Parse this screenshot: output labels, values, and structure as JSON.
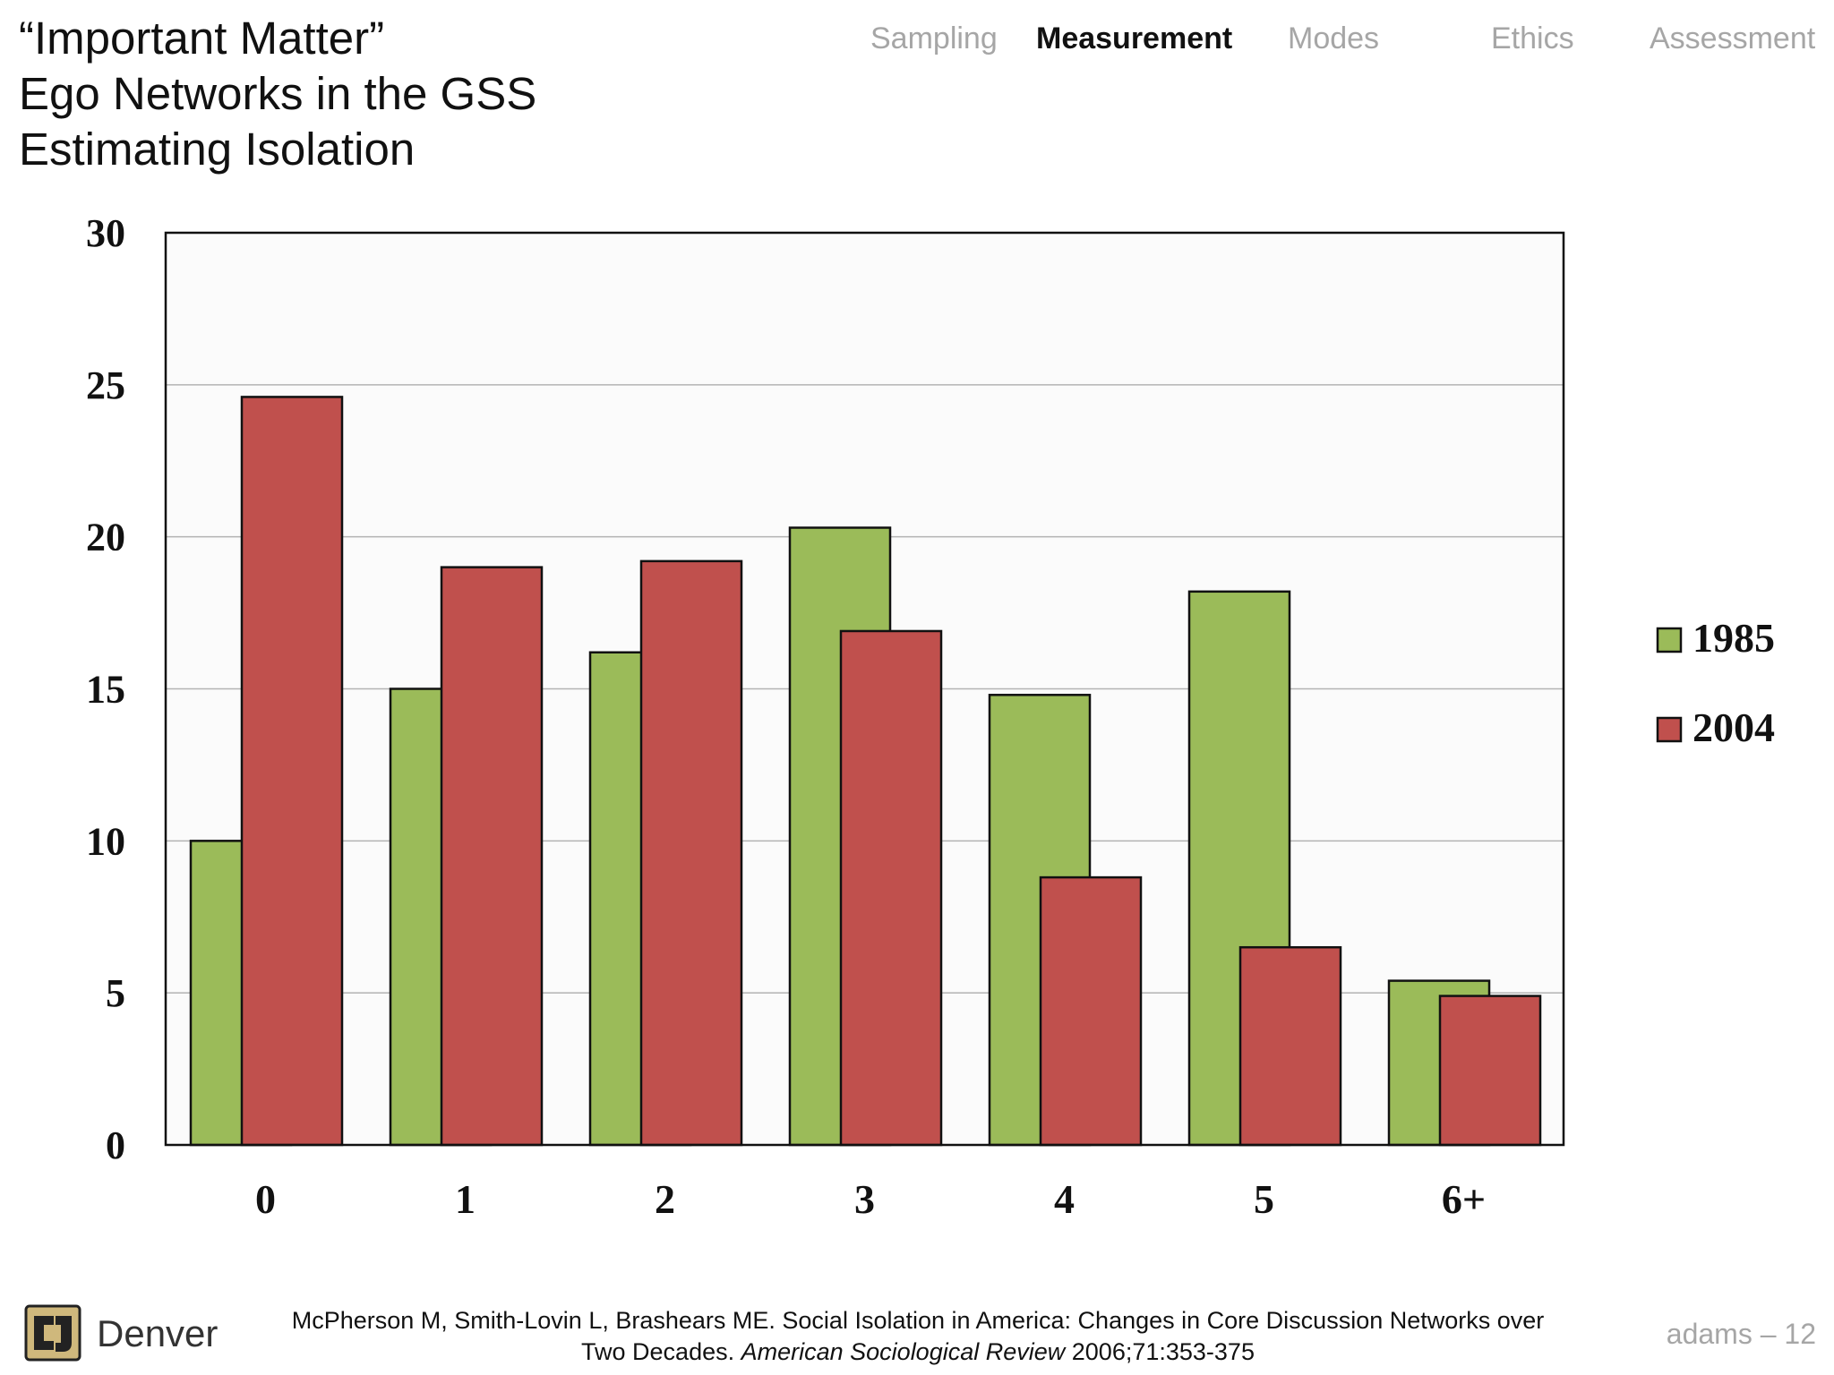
{
  "slide": {
    "title_lines": [
      "“Important Matter”",
      "Ego Networks in the GSS",
      "Estimating Isolation"
    ],
    "nav": [
      {
        "label": "Sampling",
        "active": false
      },
      {
        "label": "Measurement",
        "active": true
      },
      {
        "label": "Modes",
        "active": false
      },
      {
        "label": "Ethics",
        "active": false
      },
      {
        "label": "Assessment",
        "active": false
      }
    ],
    "footer": {
      "brand": "Denver",
      "citation_line1": "McPherson M, Smith-Lovin L, Brashears ME. Social Isolation in America: Changes in Core Discussion Networks over",
      "citation_line2_plain": "Two Decades. ",
      "citation_journal": "American Sociological Review",
      "citation_line2_rest": " 2006;71:353-375",
      "slide_number": "adams – 12"
    },
    "colors": {
      "series_1985": "#9bbb59",
      "series_2004": "#c0504d",
      "logo_gold": "#cfb87c",
      "nav_inactive": "#a6a6a6"
    }
  },
  "chart_data": {
    "type": "bar",
    "categories": [
      "0",
      "1",
      "2",
      "3",
      "4",
      "5",
      "6+"
    ],
    "series": [
      {
        "name": "1985",
        "values": [
          10.0,
          15.0,
          16.2,
          20.3,
          14.8,
          18.2,
          5.4
        ]
      },
      {
        "name": "2004",
        "values": [
          24.6,
          19.0,
          19.2,
          16.9,
          8.8,
          6.5,
          4.9
        ]
      }
    ],
    "title": "",
    "xlabel": "",
    "ylabel": "",
    "ylim": [
      0,
      30
    ],
    "yticks": [
      0,
      5,
      10,
      15,
      20,
      25,
      30
    ],
    "grid": true,
    "legend_position": "right"
  }
}
